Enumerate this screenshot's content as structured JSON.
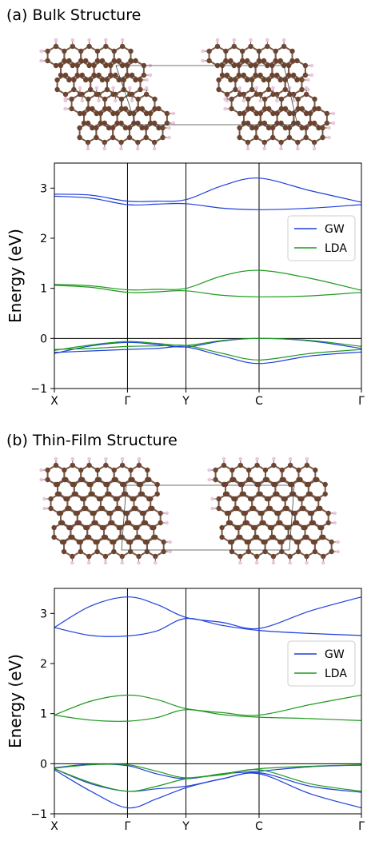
{
  "colors": {
    "gw": "#1f3fdb",
    "lda": "#1f9a1f",
    "carbon": "#6b4430",
    "hydrogen": "#e9c7df",
    "bond": "#7a5a4a"
  },
  "panels": [
    {
      "title": "(a) Bulk Structure",
      "molecule": "bulk"
    },
    {
      "title": "(b) Thin-Film Structure",
      "molecule": "film"
    }
  ],
  "chart_data": [
    {
      "type": "line",
      "ylabel": "Energy (eV)",
      "xticks": [
        "X",
        "Γ",
        "Y",
        "C",
        "Γ"
      ],
      "xtick_positions": [
        0,
        1,
        1.8,
        2.8,
        4.2
      ],
      "xlim": [
        0,
        4.2
      ],
      "ylim": [
        -1,
        3.5
      ],
      "yticks": [
        -1,
        0,
        1,
        2,
        3
      ],
      "legend": {
        "placement": "right",
        "entries": [
          "GW",
          "LDA"
        ]
      },
      "series": [
        {
          "name": "GW",
          "color": "gw",
          "curves": [
            [
              [
                0,
                2.88
              ],
              [
                0.5,
                2.86
              ],
              [
                1,
                2.74
              ],
              [
                1.4,
                2.74
              ],
              [
                1.8,
                2.77
              ],
              [
                2.3,
                3.05
              ],
              [
                2.8,
                3.2
              ],
              [
                3.5,
                2.95
              ],
              [
                4.2,
                2.72
              ]
            ],
            [
              [
                0,
                2.84
              ],
              [
                0.5,
                2.8
              ],
              [
                1,
                2.67
              ],
              [
                1.4,
                2.68
              ],
              [
                1.8,
                2.69
              ],
              [
                2.3,
                2.6
              ],
              [
                2.8,
                2.57
              ],
              [
                3.5,
                2.6
              ],
              [
                4.2,
                2.67
              ]
            ],
            [
              [
                0,
                -0.28
              ],
              [
                0.5,
                -0.25
              ],
              [
                1,
                -0.22
              ],
              [
                1.4,
                -0.2
              ],
              [
                1.8,
                -0.17
              ],
              [
                2.3,
                -0.35
              ],
              [
                2.8,
                -0.5
              ],
              [
                3.5,
                -0.35
              ],
              [
                4.2,
                -0.27
              ]
            ],
            [
              [
                0,
                -0.3
              ],
              [
                0.5,
                -0.15
              ],
              [
                1,
                -0.08
              ],
              [
                1.4,
                -0.12
              ],
              [
                1.8,
                -0.17
              ],
              [
                2.3,
                -0.05
              ],
              [
                2.8,
                0
              ],
              [
                3.5,
                -0.05
              ],
              [
                4.2,
                -0.2
              ]
            ]
          ]
        },
        {
          "name": "LDA",
          "color": "lda",
          "curves": [
            [
              [
                0,
                1.08
              ],
              [
                0.5,
                1.05
              ],
              [
                1,
                0.97
              ],
              [
                1.4,
                0.98
              ],
              [
                1.8,
                1
              ],
              [
                2.3,
                1.25
              ],
              [
                2.8,
                1.36
              ],
              [
                3.5,
                1.2
              ],
              [
                4.2,
                0.96
              ]
            ],
            [
              [
                0,
                1.06
              ],
              [
                0.5,
                1.02
              ],
              [
                1,
                0.92
              ],
              [
                1.4,
                0.93
              ],
              [
                1.8,
                0.95
              ],
              [
                2.3,
                0.86
              ],
              [
                2.8,
                0.83
              ],
              [
                3.5,
                0.85
              ],
              [
                4.2,
                0.92
              ]
            ],
            [
              [
                0,
                -0.22
              ],
              [
                0.5,
                -0.2
              ],
              [
                1,
                -0.16
              ],
              [
                1.4,
                -0.15
              ],
              [
                1.8,
                -0.14
              ],
              [
                2.3,
                -0.3
              ],
              [
                2.8,
                -0.43
              ],
              [
                3.5,
                -0.3
              ],
              [
                4.2,
                -0.22
              ]
            ],
            [
              [
                0,
                -0.24
              ],
              [
                0.5,
                -0.13
              ],
              [
                1,
                -0.06
              ],
              [
                1.4,
                -0.1
              ],
              [
                1.8,
                -0.14
              ],
              [
                2.3,
                -0.04
              ],
              [
                2.8,
                0
              ],
              [
                3.5,
                -0.04
              ],
              [
                4.2,
                -0.16
              ]
            ]
          ]
        }
      ]
    },
    {
      "type": "line",
      "ylabel": "Energy (eV)",
      "xticks": [
        "X",
        "Γ",
        "Y",
        "C",
        "Γ"
      ],
      "xtick_positions": [
        0,
        1,
        1.8,
        2.8,
        4.2
      ],
      "xlim": [
        0,
        4.2
      ],
      "ylim": [
        -1,
        3.5
      ],
      "yticks": [
        -1,
        0,
        1,
        2,
        3
      ],
      "legend": {
        "placement": "right",
        "entries": [
          "GW",
          "LDA"
        ]
      },
      "series": [
        {
          "name": "GW",
          "color": "gw",
          "curves": [
            [
              [
                0,
                2.72
              ],
              [
                0.5,
                3.15
              ],
              [
                1,
                3.33
              ],
              [
                1.4,
                3.18
              ],
              [
                1.8,
                2.92
              ],
              [
                2.3,
                2.82
              ],
              [
                2.8,
                2.7
              ],
              [
                3.5,
                3.05
              ],
              [
                4.2,
                3.33
              ]
            ],
            [
              [
                0,
                2.72
              ],
              [
                0.5,
                2.56
              ],
              [
                1,
                2.55
              ],
              [
                1.4,
                2.65
              ],
              [
                1.8,
                2.9
              ],
              [
                2.3,
                2.76
              ],
              [
                2.8,
                2.66
              ],
              [
                3.5,
                2.6
              ],
              [
                4.2,
                2.56
              ]
            ],
            [
              [
                0,
                -0.1
              ],
              [
                0.5,
                -0.4
              ],
              [
                1,
                -0.55
              ],
              [
                1.4,
                -0.5
              ],
              [
                1.8,
                -0.45
              ],
              [
                2.3,
                -0.3
              ],
              [
                2.8,
                -0.18
              ],
              [
                3.5,
                -0.45
              ],
              [
                4.2,
                -0.57
              ]
            ],
            [
              [
                0,
                -0.12
              ],
              [
                0.5,
                -0.55
              ],
              [
                1,
                -0.88
              ],
              [
                1.4,
                -0.7
              ],
              [
                1.8,
                -0.48
              ],
              [
                2.3,
                -0.3
              ],
              [
                2.8,
                -0.2
              ],
              [
                3.5,
                -0.6
              ],
              [
                4.2,
                -0.88
              ]
            ],
            [
              [
                0,
                -0.08
              ],
              [
                0.5,
                -0.01
              ],
              [
                1,
                -0.04
              ],
              [
                1.4,
                -0.2
              ],
              [
                1.8,
                -0.3
              ],
              [
                2.3,
                -0.2
              ],
              [
                2.8,
                -0.15
              ],
              [
                3.5,
                -0.06
              ],
              [
                4.2,
                -0.03
              ]
            ]
          ]
        },
        {
          "name": "LDA",
          "color": "lda",
          "curves": [
            [
              [
                0,
                0.97
              ],
              [
                0.5,
                1.25
              ],
              [
                1,
                1.37
              ],
              [
                1.4,
                1.28
              ],
              [
                1.8,
                1.1
              ],
              [
                2.3,
                1.02
              ],
              [
                2.8,
                0.97
              ],
              [
                3.5,
                1.18
              ],
              [
                4.2,
                1.37
              ]
            ],
            [
              [
                0,
                0.97
              ],
              [
                0.5,
                0.87
              ],
              [
                1,
                0.85
              ],
              [
                1.4,
                0.92
              ],
              [
                1.8,
                1.08
              ],
              [
                2.3,
                0.98
              ],
              [
                2.8,
                0.93
              ],
              [
                3.5,
                0.9
              ],
              [
                4.2,
                0.86
              ]
            ],
            [
              [
                0,
                -0.1
              ],
              [
                0.5,
                -0.38
              ],
              [
                1,
                -0.55
              ],
              [
                1.4,
                -0.45
              ],
              [
                1.8,
                -0.3
              ],
              [
                2.3,
                -0.22
              ],
              [
                2.8,
                -0.12
              ],
              [
                3.5,
                -0.4
              ],
              [
                4.2,
                -0.55
              ]
            ],
            [
              [
                0,
                -0.09
              ],
              [
                0.5,
                -0.02
              ],
              [
                1,
                -0.02
              ],
              [
                1.4,
                -0.15
              ],
              [
                1.8,
                -0.28
              ],
              [
                2.3,
                -0.2
              ],
              [
                2.8,
                -0.1
              ],
              [
                3.5,
                -0.05
              ],
              [
                4.2,
                -0.02
              ]
            ]
          ]
        }
      ]
    }
  ]
}
